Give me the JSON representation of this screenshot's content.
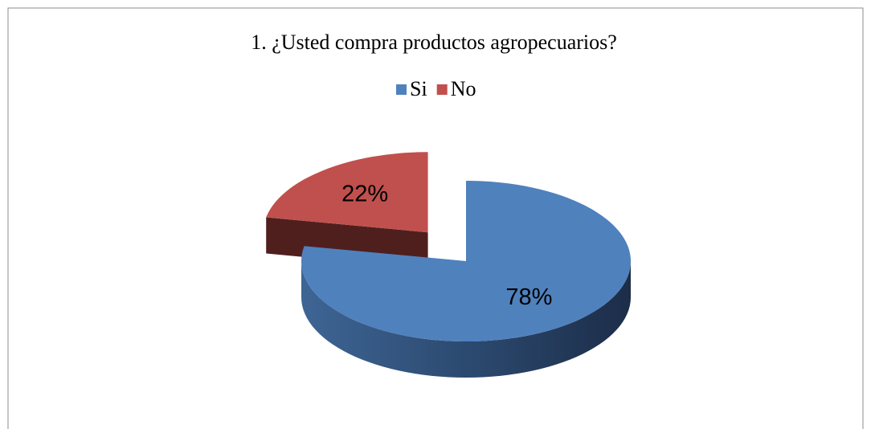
{
  "chart_data": {
    "type": "pie",
    "title": "1. ¿Usted compra productos agropecuarios?",
    "categories": [
      "Si",
      "No"
    ],
    "values": [
      78,
      22
    ],
    "value_labels": [
      "78%",
      "22%"
    ],
    "colors": [
      "#4f81bd",
      "#c0504d"
    ],
    "legend": "top"
  }
}
